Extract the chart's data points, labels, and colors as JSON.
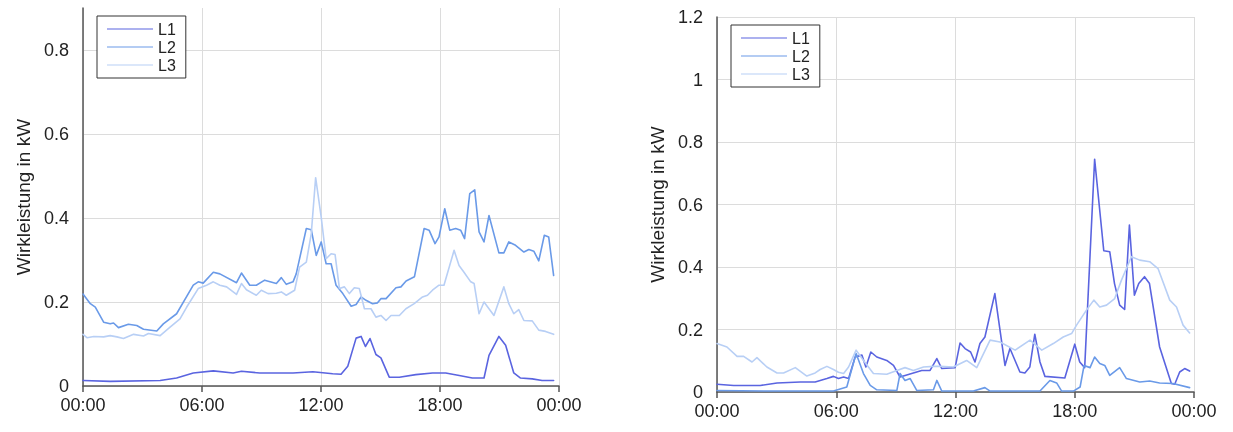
{
  "chart_data": [
    {
      "type": "line",
      "ylabel": "Wirkleistung in kW",
      "xlim": [
        0,
        24
      ],
      "ylim": [
        0,
        0.9
      ],
      "xticks": [
        {
          "value": 0,
          "label": "00:00"
        },
        {
          "value": 6,
          "label": "06:00"
        },
        {
          "value": 12,
          "label": "12:00"
        },
        {
          "value": 18,
          "label": "18:00"
        },
        {
          "value": 24,
          "label": "00:00"
        }
      ],
      "yticks": [
        0,
        0.2,
        0.4,
        0.6,
        0.8
      ],
      "grid": true,
      "legend": "top left",
      "marker": "none",
      "line_style": "solid",
      "series": [
        {
          "name": "L1",
          "color": "#5a64e0",
          "x": [
            0,
            1.37,
            3.89,
            4.72,
            5.56,
            6.57,
            7.57,
            7.99,
            8.91,
            10.59,
            11.59,
            12.59,
            13.01,
            13.35,
            13.77,
            14.02,
            14.24,
            14.47,
            14.77,
            15.02,
            15.44,
            15.95,
            16.78,
            17.62,
            18.29,
            18.97,
            19.63,
            20.22,
            20.47,
            20.97,
            21.31,
            21.72,
            22.06,
            22.65,
            23.15,
            23.73
          ],
          "values": [
            0.013,
            0.011,
            0.013,
            0.019,
            0.031,
            0.036,
            0.031,
            0.035,
            0.031,
            0.031,
            0.034,
            0.029,
            0.028,
            0.047,
            0.114,
            0.118,
            0.094,
            0.113,
            0.075,
            0.067,
            0.021,
            0.021,
            0.027,
            0.031,
            0.031,
            0.025,
            0.019,
            0.019,
            0.073,
            0.118,
            0.097,
            0.031,
            0.019,
            0.017,
            0.013,
            0.013
          ]
        },
        {
          "name": "L2",
          "color": "#6a9ae8",
          "x": [
            0,
            0.37,
            0.62,
            1.04,
            1.37,
            1.54,
            1.79,
            2.29,
            2.71,
            3.05,
            3.72,
            4.05,
            4.72,
            5.56,
            5.81,
            6.06,
            6.57,
            6.9,
            7.74,
            7.99,
            8.41,
            8.74,
            9.16,
            9.75,
            10,
            10.25,
            10.59,
            10.75,
            11.26,
            11.51,
            11.76,
            12.01,
            12.26,
            12.51,
            12.76,
            13.1,
            13.52,
            13.77,
            14.02,
            14.27,
            14.6,
            14.85,
            15.02,
            15.28,
            15.78,
            16.03,
            16.29,
            16.71,
            17.2,
            17.45,
            17.75,
            17.95,
            18.24,
            18.49,
            18.79,
            19.04,
            19.24,
            19.5,
            19.75,
            19.97,
            20.22,
            20.47,
            20.97,
            21.22,
            21.47,
            21.81,
            22.23,
            22.48,
            22.73,
            22.98,
            23.26,
            23.48,
            23.73
          ],
          "values": [
            0.219,
            0.196,
            0.188,
            0.152,
            0.148,
            0.15,
            0.139,
            0.147,
            0.144,
            0.135,
            0.131,
            0.148,
            0.172,
            0.24,
            0.248,
            0.245,
            0.271,
            0.267,
            0.246,
            0.269,
            0.24,
            0.24,
            0.252,
            0.244,
            0.258,
            0.242,
            0.248,
            0.267,
            0.375,
            0.372,
            0.311,
            0.343,
            0.291,
            0.291,
            0.24,
            0.22,
            0.19,
            0.194,
            0.212,
            0.204,
            0.196,
            0.198,
            0.208,
            0.208,
            0.234,
            0.236,
            0.25,
            0.26,
            0.375,
            0.371,
            0.339,
            0.355,
            0.422,
            0.371,
            0.375,
            0.371,
            0.351,
            0.458,
            0.467,
            0.367,
            0.343,
            0.406,
            0.317,
            0.317,
            0.343,
            0.335,
            0.319,
            0.325,
            0.321,
            0.298,
            0.359,
            0.355,
            0.263
          ]
        },
        {
          "name": "L3",
          "color": "#b8cff5",
          "x": [
            0,
            0.2,
            0.54,
            1.04,
            1.37,
            1.71,
            2.04,
            2.55,
            3.05,
            3.3,
            3.89,
            4.39,
            4.89,
            5.23,
            5.81,
            6.23,
            6.57,
            6.9,
            7.24,
            7.74,
            7.99,
            8.24,
            8.74,
            8.99,
            9.33,
            9.75,
            10,
            10.25,
            10.67,
            10.92,
            11.26,
            11.51,
            11.73,
            12.01,
            12.26,
            12.51,
            12.71,
            12.93,
            13.18,
            13.43,
            13.68,
            13.93,
            14.19,
            14.52,
            14.77,
            15.02,
            15.28,
            15.53,
            15.95,
            16.28,
            16.7,
            17.12,
            17.37,
            17.62,
            17.95,
            18.2,
            18.71,
            18.96,
            19.21,
            19.55,
            19.72,
            19.97,
            20.22,
            20.72,
            21.22,
            21.47,
            21.72,
            21.97,
            22.23,
            22.65,
            22.98,
            23.32,
            23.73
          ],
          "values": [
            0.123,
            0.115,
            0.118,
            0.117,
            0.12,
            0.117,
            0.113,
            0.123,
            0.119,
            0.125,
            0.12,
            0.14,
            0.16,
            0.188,
            0.232,
            0.24,
            0.248,
            0.24,
            0.236,
            0.218,
            0.244,
            0.229,
            0.216,
            0.228,
            0.22,
            0.221,
            0.224,
            0.216,
            0.228,
            0.283,
            0.295,
            0.363,
            0.496,
            0.402,
            0.303,
            0.315,
            0.313,
            0.232,
            0.236,
            0.22,
            0.234,
            0.232,
            0.184,
            0.184,
            0.164,
            0.168,
            0.156,
            0.168,
            0.168,
            0.184,
            0.196,
            0.212,
            0.216,
            0.228,
            0.24,
            0.24,
            0.323,
            0.287,
            0.271,
            0.248,
            0.244,
            0.172,
            0.2,
            0.168,
            0.236,
            0.196,
            0.172,
            0.182,
            0.156,
            0.155,
            0.133,
            0.13,
            0.123
          ]
        }
      ]
    },
    {
      "type": "line",
      "ylabel": "Wirkleistung in kW",
      "xlim": [
        0,
        24
      ],
      "ylim": [
        0,
        1.2
      ],
      "xticks": [
        {
          "value": 0,
          "label": "00:00"
        },
        {
          "value": 6,
          "label": "06:00"
        },
        {
          "value": 12,
          "label": "12:00"
        },
        {
          "value": 18,
          "label": "18:00"
        },
        {
          "value": 24,
          "label": "00:00"
        }
      ],
      "yticks": [
        0,
        0.2,
        0.4,
        0.6,
        0.8,
        1,
        1.2
      ],
      "grid": true,
      "legend": "top left",
      "marker": "none",
      "line_style": "solid",
      "series": [
        {
          "name": "L1",
          "color": "#5a64e0",
          "x": [
            0,
            0.84,
            2.18,
            3.02,
            4.19,
            4.94,
            5.53,
            5.86,
            6.11,
            6.37,
            6.62,
            6.95,
            7.29,
            7.49,
            7.74,
            8.04,
            8.54,
            8.88,
            9.21,
            9.88,
            10.3,
            10.72,
            11.06,
            11.31,
            11.98,
            12.23,
            12.48,
            12.76,
            12.98,
            13.23,
            13.48,
            13.98,
            14.49,
            14.74,
            15.24,
            15.49,
            15.74,
            15.99,
            16.25,
            16.5,
            17.5,
            18.0,
            18.25,
            18.5,
            19.0,
            19.46,
            19.76,
            20.0,
            20.26,
            20.51,
            20.75,
            21.0,
            21.22,
            21.51,
            21.76,
            22.27,
            22.86,
            23.03,
            23.28,
            23.53,
            23.78
          ],
          "values": [
            0.025,
            0.021,
            0.021,
            0.029,
            0.032,
            0.032,
            0.043,
            0.05,
            0.043,
            0.048,
            0.043,
            0.112,
            0.118,
            0.08,
            0.128,
            0.112,
            0.101,
            0.085,
            0.048,
            0.061,
            0.069,
            0.069,
            0.107,
            0.075,
            0.078,
            0.157,
            0.139,
            0.128,
            0.096,
            0.155,
            0.176,
            0.315,
            0.085,
            0.139,
            0.064,
            0.061,
            0.08,
            0.185,
            0.096,
            0.05,
            0.045,
            0.153,
            0.096,
            0.078,
            0.745,
            0.452,
            0.449,
            0.347,
            0.278,
            0.264,
            0.534,
            0.31,
            0.347,
            0.369,
            0.347,
            0.144,
            0.027,
            0.025,
            0.064,
            0.075,
            0.067
          ]
        },
        {
          "name": "L2",
          "color": "#6a9ae8",
          "x": [
            0,
            2.51,
            5.86,
            6.53,
            7.0,
            7.37,
            7.71,
            8.04,
            9.05,
            9.21,
            9.46,
            9.72,
            10.05,
            10.89,
            11.06,
            11.31,
            12.23,
            12.9,
            13.48,
            13.74,
            16.25,
            16.75,
            17.09,
            17.34,
            17.93,
            18.27,
            18.47,
            18.77,
            19.0,
            19.26,
            19.51,
            19.76,
            20.26,
            20.6,
            21.27,
            21.77,
            22.27,
            22.94,
            23.78
          ],
          "values": [
            0.005,
            0.003,
            0.003,
            0.016,
            0.123,
            0.059,
            0.021,
            0.007,
            0.005,
            0.059,
            0.037,
            0.043,
            0.005,
            0.007,
            0.037,
            0.003,
            0.003,
            0.003,
            0.014,
            0.003,
            0.003,
            0.037,
            0.029,
            0.003,
            0.003,
            0.016,
            0.085,
            0.078,
            0.112,
            0.091,
            0.085,
            0.053,
            0.078,
            0.043,
            0.032,
            0.035,
            0.029,
            0.027,
            0.014
          ]
        },
        {
          "name": "L3",
          "color": "#b8cff5",
          "x": [
            0,
            0.5,
            1.01,
            1.34,
            1.76,
            2.01,
            2.51,
            3.02,
            3.35,
            3.94,
            4.52,
            4.94,
            5.19,
            5.53,
            5.86,
            6.11,
            6.37,
            6.62,
            7.0,
            7.37,
            7.87,
            8.54,
            9.05,
            9.46,
            9.88,
            10.39,
            10.89,
            11.22,
            11.89,
            12.56,
            13.07,
            13.74,
            14.24,
            15.0,
            15.75,
            16.34,
            16.92,
            17.42,
            17.84,
            18.09,
            18.59,
            18.96,
            19.26,
            19.6,
            20.01,
            20.35,
            20.85,
            21.27,
            21.77,
            22.19,
            22.78,
            23.12,
            23.45,
            23.78
          ],
          "values": [
            0.155,
            0.144,
            0.114,
            0.114,
            0.096,
            0.11,
            0.08,
            0.061,
            0.061,
            0.078,
            0.051,
            0.061,
            0.072,
            0.082,
            0.072,
            0.063,
            0.059,
            0.08,
            0.134,
            0.101,
            0.059,
            0.057,
            0.069,
            0.078,
            0.069,
            0.08,
            0.082,
            0.082,
            0.08,
            0.101,
            0.078,
            0.166,
            0.16,
            0.134,
            0.166,
            0.134,
            0.155,
            0.176,
            0.187,
            0.214,
            0.262,
            0.294,
            0.272,
            0.278,
            0.299,
            0.358,
            0.433,
            0.422,
            0.417,
            0.395,
            0.294,
            0.272,
            0.214,
            0.189
          ]
        }
      ]
    }
  ]
}
